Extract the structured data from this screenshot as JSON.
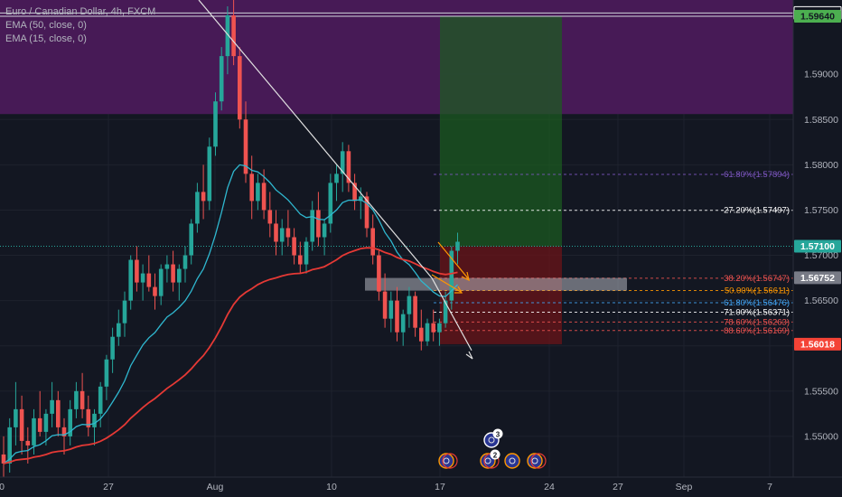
{
  "legend": {
    "symbol": "Euro / Canadian Dollar, 4h, FXCM",
    "ema1": "EMA (50, close, 0)",
    "ema2": "EMA (15, close, 0)"
  },
  "colors": {
    "background": "#131722",
    "up": "#26a69a",
    "down": "#ef5350",
    "ema50": "#e53935",
    "ema15": "#2fb8d0",
    "resistance_zone": "#4a1a5a",
    "profit_zone": "#1b5e20",
    "loss_zone": "#6b1418"
  },
  "chart_data": {
    "type": "candlestick",
    "x_ticks": [
      "27",
      "Aug",
      "10",
      "17",
      "24",
      "Sep",
      "7"
    ],
    "x_tick_partial_left": "0",
    "y_ticks": [
      "1.59677",
      "1.59640",
      "1.59000",
      "1.58500",
      "1.58000",
      "1.57500",
      "1.57100",
      "1.57000",
      "1.56752",
      "1.56500",
      "1.56018",
      "1.55500",
      "1.55000"
    ],
    "y_range": [
      1.5455,
      1.5982
    ],
    "price_labels": [
      {
        "value": 1.59677,
        "text": "1.59677",
        "style": "white"
      },
      {
        "value": 1.5964,
        "text": "1.59640",
        "style": "green"
      },
      {
        "value": 1.571,
        "text": "1.57100",
        "style": "teal"
      },
      {
        "value": 1.56752,
        "text": "1.56752",
        "style": "grey"
      },
      {
        "value": 1.56018,
        "text": "1.56018",
        "style": "red"
      }
    ],
    "fib_levels": [
      {
        "value": 1.57894,
        "text": "-61.80%(1.57894)",
        "color": "#7e57c2"
      },
      {
        "value": 1.57497,
        "text": "-27.20%(1.57497)",
        "color": "#ffffff"
      },
      {
        "value": 1.56747,
        "text": "38.20%(1.56747)",
        "color": "#ef5350"
      },
      {
        "value": 1.56611,
        "text": "50.00%(1.56611)",
        "color": "#ff9800"
      },
      {
        "value": 1.56476,
        "text": "61.80%(1.56476)",
        "color": "#42a5f5"
      },
      {
        "value": 1.56371,
        "text": "71.00%(1.56371)",
        "color": "#ffffff"
      },
      {
        "value": 1.56263,
        "text": "78.60%(1.56263)",
        "color": "#ef5350"
      },
      {
        "value": 1.56169,
        "text": "88.60%(1.56169)",
        "color": "#ef5350"
      }
    ],
    "resistance_zone": [
      1.5856,
      1.5982
    ],
    "position": {
      "entry": 1.571,
      "target": 1.5964,
      "stop": 1.56018
    },
    "candles_ohlc": [
      [
        1.548,
        1.55,
        1.5455,
        1.547
      ],
      [
        1.547,
        1.552,
        1.546,
        1.551
      ],
      [
        1.551,
        1.556,
        1.549,
        1.553
      ],
      [
        1.553,
        1.5545,
        1.548,
        1.5495
      ],
      [
        1.5495,
        1.551,
        1.547,
        1.549
      ],
      [
        1.549,
        1.553,
        1.548,
        1.552
      ],
      [
        1.552,
        1.555,
        1.55,
        1.5505
      ],
      [
        1.5505,
        1.553,
        1.549,
        1.5525
      ],
      [
        1.5525,
        1.556,
        1.551,
        1.554
      ],
      [
        1.554,
        1.555,
        1.55,
        1.551
      ],
      [
        1.551,
        1.552,
        1.548,
        1.55
      ],
      [
        1.55,
        1.554,
        1.549,
        1.553
      ],
      [
        1.553,
        1.556,
        1.552,
        1.555
      ],
      [
        1.555,
        1.557,
        1.552,
        1.553
      ],
      [
        1.553,
        1.5545,
        1.55,
        1.551
      ],
      [
        1.551,
        1.553,
        1.549,
        1.5525
      ],
      [
        1.5525,
        1.556,
        1.551,
        1.5555
      ],
      [
        1.5555,
        1.559,
        1.554,
        1.5585
      ],
      [
        1.5585,
        1.562,
        1.557,
        1.561
      ],
      [
        1.561,
        1.564,
        1.56,
        1.5625
      ],
      [
        1.5625,
        1.566,
        1.561,
        1.565
      ],
      [
        1.565,
        1.57,
        1.564,
        1.5695
      ],
      [
        1.5695,
        1.571,
        1.566,
        1.567
      ],
      [
        1.567,
        1.569,
        1.565,
        1.568
      ],
      [
        1.568,
        1.57,
        1.566,
        1.5665
      ],
      [
        1.5665,
        1.568,
        1.564,
        1.5655
      ],
      [
        1.5655,
        1.569,
        1.5645,
        1.5685
      ],
      [
        1.5685,
        1.57,
        1.567,
        1.569
      ],
      [
        1.569,
        1.5705,
        1.566,
        1.567
      ],
      [
        1.567,
        1.569,
        1.565,
        1.5685
      ],
      [
        1.5685,
        1.571,
        1.567,
        1.57
      ],
      [
        1.57,
        1.574,
        1.569,
        1.5735
      ],
      [
        1.5735,
        1.578,
        1.5725,
        1.577
      ],
      [
        1.577,
        1.58,
        1.574,
        1.576
      ],
      [
        1.576,
        1.583,
        1.575,
        1.582
      ],
      [
        1.582,
        1.588,
        1.581,
        1.587
      ],
      [
        1.587,
        1.593,
        1.586,
        1.592
      ],
      [
        1.592,
        1.5975,
        1.59,
        1.5965
      ],
      [
        1.5965,
        1.5982,
        1.591,
        1.592
      ],
      [
        1.592,
        1.593,
        1.584,
        1.585
      ],
      [
        1.585,
        1.587,
        1.578,
        1.579
      ],
      [
        1.579,
        1.581,
        1.574,
        1.576
      ],
      [
        1.576,
        1.579,
        1.575,
        1.578
      ],
      [
        1.578,
        1.5795,
        1.574,
        1.575
      ],
      [
        1.575,
        1.577,
        1.572,
        1.5735
      ],
      [
        1.5735,
        1.575,
        1.57,
        1.5715
      ],
      [
        1.5715,
        1.574,
        1.57,
        1.573
      ],
      [
        1.573,
        1.575,
        1.571,
        1.572
      ],
      [
        1.572,
        1.573,
        1.569,
        1.57
      ],
      [
        1.57,
        1.5715,
        1.568,
        1.569
      ],
      [
        1.569,
        1.572,
        1.568,
        1.5715
      ],
      [
        1.5715,
        1.576,
        1.5705,
        1.575
      ],
      [
        1.575,
        1.577,
        1.571,
        1.572
      ],
      [
        1.572,
        1.574,
        1.57,
        1.5735
      ],
      [
        1.5735,
        1.579,
        1.5725,
        1.578
      ],
      [
        1.578,
        1.58,
        1.576,
        1.579
      ],
      [
        1.579,
        1.5825,
        1.577,
        1.5815
      ],
      [
        1.5815,
        1.5822,
        1.577,
        1.578
      ],
      [
        1.578,
        1.579,
        1.575,
        1.576
      ],
      [
        1.576,
        1.5775,
        1.574,
        1.5765
      ],
      [
        1.5765,
        1.577,
        1.572,
        1.573
      ],
      [
        1.573,
        1.5745,
        1.569,
        1.57
      ],
      [
        1.57,
        1.5705,
        1.565,
        1.566
      ],
      [
        1.566,
        1.568,
        1.562,
        1.563
      ],
      [
        1.563,
        1.566,
        1.5615,
        1.565
      ],
      [
        1.565,
        1.5665,
        1.5605,
        1.5615
      ],
      [
        1.5615,
        1.564,
        1.56,
        1.5635
      ],
      [
        1.5635,
        1.5665,
        1.562,
        1.5655
      ],
      [
        1.5655,
        1.566,
        1.561,
        1.562
      ],
      [
        1.562,
        1.564,
        1.5595,
        1.5605
      ],
      [
        1.5605,
        1.563,
        1.56,
        1.5625
      ],
      [
        1.5625,
        1.564,
        1.5605,
        1.5615
      ],
      [
        1.5615,
        1.563,
        1.56,
        1.5625
      ],
      [
        1.5625,
        1.566,
        1.562,
        1.565
      ],
      [
        1.565,
        1.571,
        1.564,
        1.5705
      ],
      [
        1.5705,
        1.5725,
        1.569,
        1.5715
      ]
    ]
  }
}
